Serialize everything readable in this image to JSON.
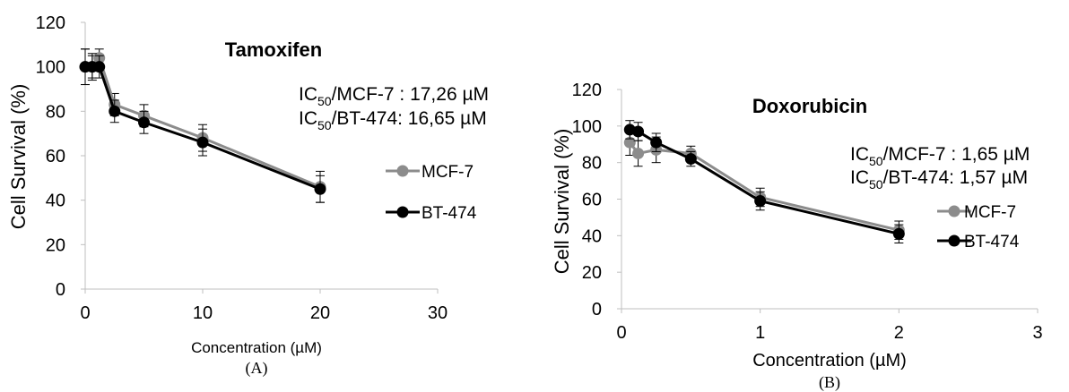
{
  "chart_data": [
    {
      "type": "line",
      "panel_label": "(A)",
      "title": "Tamoxifen",
      "xlabel": "Concentration (µM)",
      "ylabel": "Cell Survival (%)",
      "xlim": [
        0,
        30
      ],
      "ylim": [
        0,
        120
      ],
      "xticks": [
        0,
        10,
        20,
        30
      ],
      "yticks": [
        0,
        20,
        40,
        60,
        80,
        100,
        120
      ],
      "grid": false,
      "legend_position": "right",
      "annotations": [
        {
          "pre": "IC",
          "sub": "50",
          "post": "/MCF-7 : 17,26 µM"
        },
        {
          "pre": "IC",
          "sub": "50",
          "post": "/BT-474: 16,65 µM"
        }
      ],
      "series": [
        {
          "name": "MCF-7",
          "color": "#8c8c8c",
          "x": [
            0,
            0.6,
            1.2,
            2.5,
            5,
            10,
            20
          ],
          "y": [
            100,
            100,
            104,
            83,
            78,
            68,
            46
          ],
          "err": [
            8,
            5,
            4,
            5,
            5,
            6,
            7
          ]
        },
        {
          "name": "BT-474",
          "color": "#000000",
          "x": [
            0,
            0.6,
            1.2,
            2.5,
            5,
            10,
            20
          ],
          "y": [
            100,
            100,
            100,
            80,
            75,
            66,
            45
          ],
          "err": [
            8,
            6,
            5,
            5,
            5,
            6,
            6
          ]
        }
      ]
    },
    {
      "type": "line",
      "panel_label": "(B)",
      "title": "Doxorubicin",
      "xlabel": "Concentration (µM)",
      "ylabel": "Cell Survival (%)",
      "xlim": [
        0,
        3
      ],
      "ylim": [
        0,
        120
      ],
      "xticks": [
        0,
        1,
        2,
        3
      ],
      "yticks": [
        0,
        20,
        40,
        60,
        80,
        100,
        120
      ],
      "grid": false,
      "legend_position": "right",
      "annotations": [
        {
          "pre": "IC",
          "sub": "50",
          "post": "/MCF-7  : 1,65 µM"
        },
        {
          "pre": "IC",
          "sub": "50",
          "post": "/BT-474: 1,57 µM"
        }
      ],
      "series": [
        {
          "name": "MCF-7",
          "color": "#8c8c8c",
          "x": [
            0.06,
            0.12,
            0.25,
            0.5,
            1,
            2
          ],
          "y": [
            91,
            85,
            87,
            85,
            61,
            43
          ],
          "err": [
            7,
            7,
            7,
            4,
            5,
            5
          ]
        },
        {
          "name": "BT-474",
          "color": "#000000",
          "x": [
            0.06,
            0.12,
            0.25,
            0.5,
            1,
            2
          ],
          "y": [
            98,
            97,
            91,
            82,
            59,
            41
          ],
          "err": [
            5,
            5,
            5,
            4,
            5,
            5
          ]
        }
      ]
    }
  ]
}
